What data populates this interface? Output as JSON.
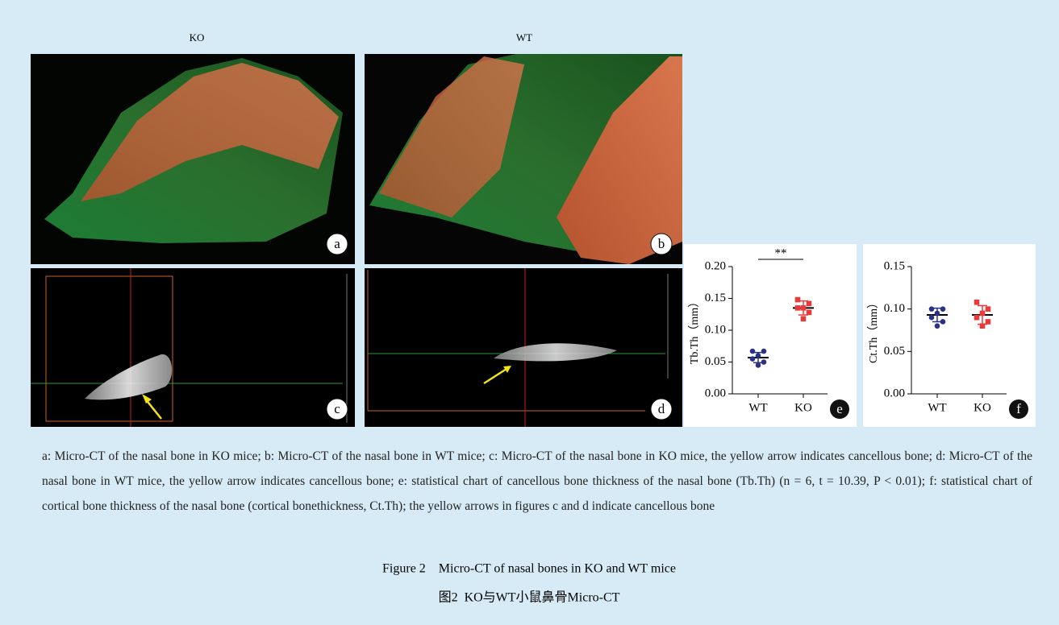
{
  "column_labels": [
    "KO",
    "WT"
  ],
  "panels": [
    "a",
    "b",
    "c",
    "d"
  ],
  "chart_data": [
    {
      "type": "dot",
      "panel": "e",
      "ylabel": "Tb.Th（mm）",
      "annotation": "**",
      "categories": [
        "WT",
        "KO"
      ],
      "groups": [
        {
          "color": "#2b3087",
          "values": [
            0.067,
            0.067,
            0.06,
            0.055,
            0.05,
            0.045
          ],
          "mean": 0.057,
          "sd": 0.008
        },
        {
          "color": "#e83a3a",
          "values": [
            0.148,
            0.142,
            0.135,
            0.135,
            0.128,
            0.118
          ],
          "mean": 0.135,
          "sd": 0.011
        }
      ],
      "ylim": [
        0,
        0.2
      ],
      "yticks": [
        {
          "value": 0,
          "label": "0.00"
        },
        {
          "value": 0.05,
          "label": "0.05"
        },
        {
          "value": 0.1,
          "label": "0.10"
        },
        {
          "value": 0.15,
          "label": "0.15"
        },
        {
          "value": 0.2,
          "label": "0.20"
        }
      ]
    },
    {
      "type": "dot",
      "panel": "f",
      "ylabel": "Ct.Th（mm）",
      "categories": [
        "WT",
        "KO"
      ],
      "groups": [
        {
          "color": "#2b3087",
          "values": [
            0.1,
            0.1,
            0.095,
            0.09,
            0.085,
            0.08
          ],
          "mean": 0.093,
          "sd": 0.008
        },
        {
          "color": "#e83a3a",
          "values": [
            0.108,
            0.1,
            0.095,
            0.09,
            0.085,
            0.08
          ],
          "mean": 0.093,
          "sd": 0.011
        }
      ],
      "ylim": [
        0,
        0.15
      ],
      "yticks": [
        {
          "value": 0,
          "label": "0.00"
        },
        {
          "value": 0.05,
          "label": "0.05"
        },
        {
          "value": 0.1,
          "label": "0.10"
        },
        {
          "value": 0.15,
          "label": "0.15"
        }
      ]
    }
  ],
  "caption": "a: Micro-CT of the nasal bone in KO mice; b: Micro-CT of the nasal bone in WT mice; c: Micro-CT of the nasal bone in KO mice, the yellow arrow indicates cancellous bone; d: Micro-CT of the nasal bone in WT mice, the yellow arrow indicates cancellous bone; e: statistical chart of cancellous bone thickness of the nasal bone (Tb.Th) (n = 6, t = 10.39, P < 0.01); f: statistical chart of cortical bone thickness of the nasal bone (cortical bonethickness, Ct.Th); the yellow arrows in figures c and d indicate cancellous bone",
  "figure_title_en": "Figure 2    Micro-CT of nasal bones in KO and WT mice",
  "figure_title_zh": "图2  KO与WT小鼠鼻骨Micro-CT"
}
